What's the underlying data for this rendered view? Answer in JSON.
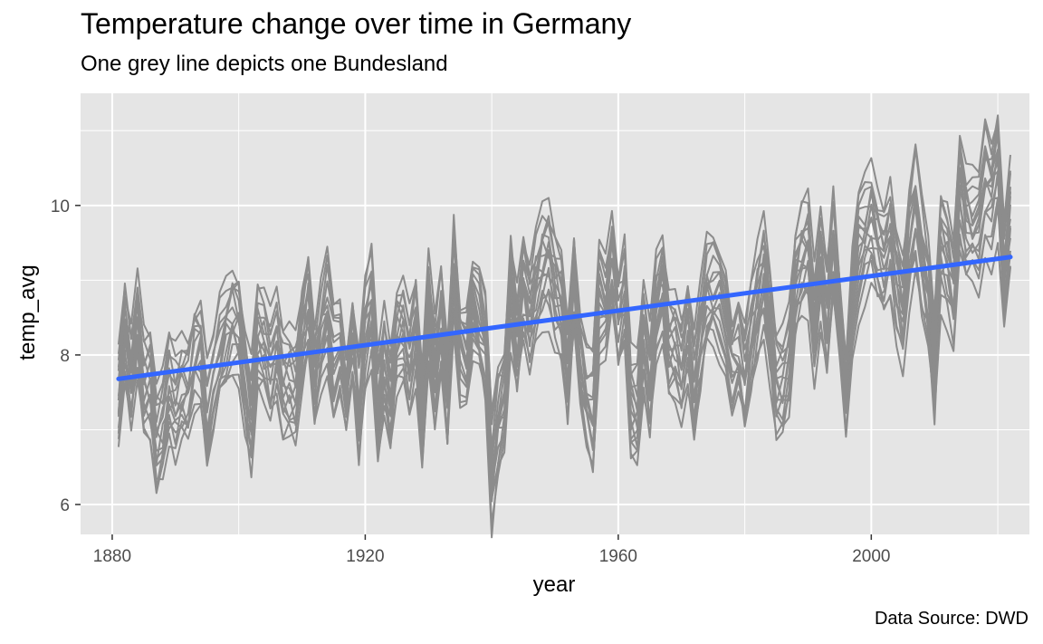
{
  "chart_data": {
    "type": "line",
    "title": "Temperature change over time in Germany",
    "subtitle": "One grey line depicts one Bundesland",
    "caption": "Data Source: DWD",
    "xlabel": "year",
    "ylabel": "temp_avg",
    "xlim": [
      1875,
      2025
    ],
    "ylim": [
      5.6,
      11.5
    ],
    "x_ticks": [
      1880,
      1920,
      1960,
      2000
    ],
    "y_ticks": [
      6,
      8,
      10
    ],
    "grid": true,
    "legend": "none",
    "colors": {
      "panel": "#e5e5e5",
      "grid": "#ffffff",
      "series": "#8c8c8c",
      "trend": "#3366ff"
    },
    "num_series": 16,
    "mean_series": {
      "x": [
        1881,
        1882,
        1883,
        1884,
        1885,
        1886,
        1887,
        1888,
        1889,
        1890,
        1891,
        1892,
        1893,
        1894,
        1895,
        1896,
        1897,
        1898,
        1899,
        1900,
        1901,
        1902,
        1903,
        1904,
        1905,
        1906,
        1907,
        1908,
        1909,
        1910,
        1911,
        1912,
        1913,
        1914,
        1915,
        1916,
        1917,
        1918,
        1919,
        1920,
        1921,
        1922,
        1923,
        1924,
        1925,
        1926,
        1927,
        1928,
        1929,
        1930,
        1931,
        1932,
        1933,
        1934,
        1935,
        1936,
        1937,
        1938,
        1939,
        1940,
        1941,
        1942,
        1943,
        1944,
        1945,
        1946,
        1947,
        1948,
        1949,
        1950,
        1951,
        1952,
        1953,
        1954,
        1955,
        1956,
        1957,
        1958,
        1959,
        1960,
        1961,
        1962,
        1963,
        1964,
        1965,
        1966,
        1967,
        1968,
        1969,
        1970,
        1971,
        1972,
        1973,
        1974,
        1975,
        1976,
        1977,
        1978,
        1979,
        1980,
        1981,
        1982,
        1983,
        1984,
        1985,
        1986,
        1987,
        1988,
        1989,
        1990,
        1991,
        1992,
        1993,
        1994,
        1995,
        1996,
        1997,
        1998,
        1999,
        2000,
        2001,
        2002,
        2003,
        2004,
        2005,
        2006,
        2007,
        2008,
        2009,
        2010,
        2011,
        2012,
        2013,
        2014,
        2015,
        2016,
        2017,
        2018,
        2019,
        2020,
        2021,
        2022
      ],
      "y": [
        7.4,
        8.3,
        7.7,
        8.4,
        7.6,
        7.6,
        6.8,
        7.0,
        7.5,
        7.3,
        7.5,
        7.5,
        8.0,
        8.1,
        7.2,
        7.4,
        8.0,
        8.3,
        8.5,
        8.4,
        7.6,
        7.1,
        8.2,
        8.1,
        7.8,
        8.1,
        7.6,
        7.6,
        7.5,
        8.2,
        8.7,
        7.6,
        8.2,
        8.6,
        7.9,
        8.1,
        7.4,
        8.2,
        7.3,
        8.3,
        8.7,
        7.2,
        7.9,
        7.4,
        8.2,
        8.3,
        7.9,
        8.4,
        7.1,
        8.6,
        7.7,
        8.4,
        7.3,
        9.2,
        8.1,
        8.1,
        8.6,
        8.4,
        8.0,
        6.4,
        7.1,
        7.4,
        8.9,
        8.2,
        8.9,
        8.5,
        8.9,
        9.2,
        9.3,
        8.9,
        8.7,
        7.8,
        9.0,
        7.9,
        7.4,
        7.2,
        8.7,
        8.6,
        9.3,
        8.5,
        8.9,
        7.3,
        7.2,
        8.2,
        7.6,
        8.6,
        8.9,
        8.1,
        8.1,
        7.8,
        8.3,
        7.6,
        8.2,
        8.8,
        8.8,
        8.7,
        8.6,
        7.9,
        8.1,
        7.6,
        8.2,
        8.7,
        9.1,
        8.4,
        7.6,
        7.6,
        7.9,
        9.0,
        9.3,
        9.4,
        8.4,
        9.2,
        8.5,
        9.5,
        8.5,
        7.4,
        8.8,
        9.4,
        9.6,
        9.8,
        9.5,
        9.3,
        9.6,
        9.0,
        8.6,
        9.5,
        10.0,
        9.3,
        8.8,
        7.8,
        9.5,
        9.3,
        8.9,
        10.3,
        9.8,
        9.7,
        9.6,
        10.4,
        10.2,
        10.6,
        9.1,
        9.9
      ]
    },
    "trend": {
      "method": "linear",
      "x": [
        1881,
        2022
      ],
      "y": [
        7.68,
        9.31
      ]
    }
  }
}
